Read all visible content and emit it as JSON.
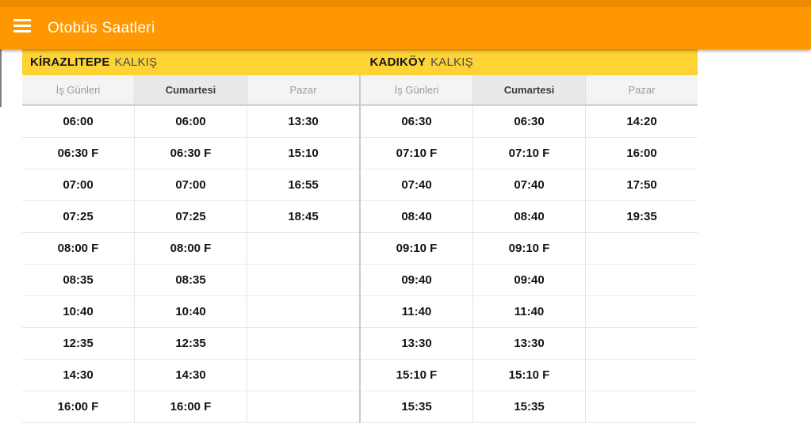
{
  "app": {
    "title": "Otobüs Saatleri",
    "menu_icon": "hamburger-menu-icon"
  },
  "colors": {
    "status_bar": "#ED8A00",
    "app_bar": "#FF9800",
    "station_band": "#FDD335",
    "header_background": "#F4F4F4",
    "header_highlight": "#E9E9E9",
    "time_text": "#141414"
  },
  "boards": [
    {
      "station": "KİRAZLITEPE",
      "suffix": "KALKIŞ",
      "columns": [
        "İş Günleri",
        "Cumartesi",
        "Pazar"
      ],
      "highlighted_column": "Cumartesi",
      "rows": [
        [
          "06:00",
          "06:00",
          "13:30"
        ],
        [
          "06:30 F",
          "06:30 F",
          "15:10"
        ],
        [
          "07:00",
          "07:00",
          "16:55"
        ],
        [
          "07:25",
          "07:25",
          "18:45"
        ],
        [
          "08:00 F",
          "08:00 F",
          ""
        ],
        [
          "08:35",
          "08:35",
          ""
        ],
        [
          "10:40",
          "10:40",
          ""
        ],
        [
          "12:35",
          "12:35",
          ""
        ],
        [
          "14:30",
          "14:30",
          ""
        ],
        [
          "16:00 F",
          "16:00 F",
          ""
        ]
      ]
    },
    {
      "station": "KADIKÖY",
      "suffix": "KALKIŞ",
      "columns": [
        "İş Günleri",
        "Cumartesi",
        "Pazar"
      ],
      "highlighted_column": "Cumartesi",
      "rows": [
        [
          "06:30",
          "06:30",
          "14:20"
        ],
        [
          "07:10 F",
          "07:10 F",
          "16:00"
        ],
        [
          "07:40",
          "07:40",
          "17:50"
        ],
        [
          "08:40",
          "08:40",
          "19:35"
        ],
        [
          "09:10 F",
          "09:10 F",
          ""
        ],
        [
          "09:40",
          "09:40",
          ""
        ],
        [
          "11:40",
          "11:40",
          ""
        ],
        [
          "13:30",
          "13:30",
          ""
        ],
        [
          "15:10 F",
          "15:10 F",
          ""
        ],
        [
          "15:35",
          "15:35",
          ""
        ]
      ]
    }
  ]
}
